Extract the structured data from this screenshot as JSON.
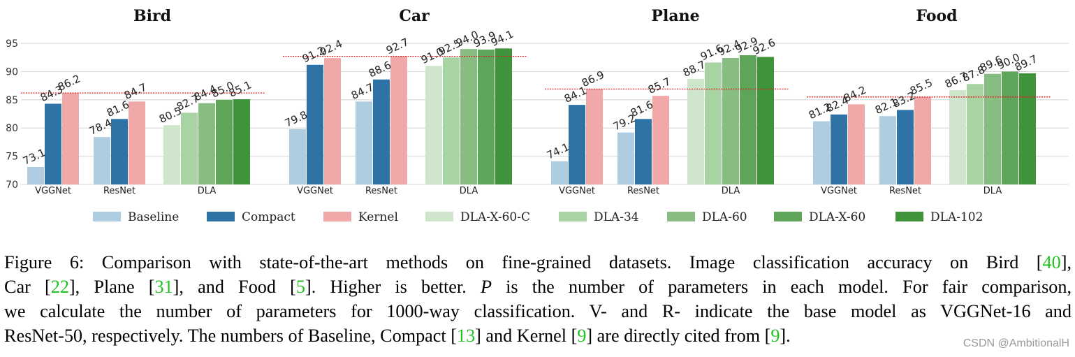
{
  "chart_data": {
    "type": "bar",
    "ylim": [
      70,
      96
    ],
    "yticks": [
      70,
      75,
      80,
      85,
      90,
      95
    ],
    "grid": true,
    "legend_position": "bottom",
    "legend": [
      {
        "name": "Baseline",
        "color": "#aecde0"
      },
      {
        "name": "Compact",
        "color": "#2f73a6"
      },
      {
        "name": "Kernel",
        "color": "#f0a8a8"
      },
      {
        "name": "DLA-X-60-C",
        "color": "#cfe6cc"
      },
      {
        "name": "DLA-34",
        "color": "#a8d3a2"
      },
      {
        "name": "DLA-60",
        "color": "#87bd80"
      },
      {
        "name": "DLA-X-60",
        "color": "#5ea55a"
      },
      {
        "name": "DLA-102",
        "color": "#3f943b"
      }
    ],
    "panels": [
      {
        "title": "Bird",
        "reference_line": 86.2,
        "groups": [
          {
            "label": "VGGNet",
            "bars": [
              {
                "series": "Baseline",
                "value": 73.1
              },
              {
                "series": "Compact",
                "value": 84.3
              },
              {
                "series": "Kernel",
                "value": 86.2
              }
            ]
          },
          {
            "label": "ResNet",
            "bars": [
              {
                "series": "Baseline",
                "value": 78.4
              },
              {
                "series": "Compact",
                "value": 81.6
              },
              {
                "series": "Kernel",
                "value": 84.7
              }
            ]
          },
          {
            "label": "DLA",
            "bars": [
              {
                "series": "DLA-X-60-C",
                "value": 80.5
              },
              {
                "series": "DLA-34",
                "value": 82.7
              },
              {
                "series": "DLA-60",
                "value": 84.4
              },
              {
                "series": "DLA-X-60",
                "value": 85.0
              },
              {
                "series": "DLA-102",
                "value": 85.1
              }
            ]
          }
        ]
      },
      {
        "title": "Car",
        "reference_line": 92.7,
        "groups": [
          {
            "label": "VGGNet",
            "bars": [
              {
                "series": "Baseline",
                "value": 79.8
              },
              {
                "series": "Compact",
                "value": 91.2
              },
              {
                "series": "Kernel",
                "value": 92.4
              }
            ]
          },
          {
            "label": "ResNet",
            "bars": [
              {
                "series": "Baseline",
                "value": 84.7
              },
              {
                "series": "Compact",
                "value": 88.6
              },
              {
                "series": "Kernel",
                "value": 92.7
              }
            ]
          },
          {
            "label": "DLA",
            "bars": [
              {
                "series": "DLA-X-60-C",
                "value": 91.0
              },
              {
                "series": "DLA-34",
                "value": 92.5
              },
              {
                "series": "DLA-60",
                "value": 94.0
              },
              {
                "series": "DLA-X-60",
                "value": 93.9
              },
              {
                "series": "DLA-102",
                "value": 94.1
              }
            ]
          }
        ]
      },
      {
        "title": "Plane",
        "reference_line": 86.9,
        "groups": [
          {
            "label": "VGGNet",
            "bars": [
              {
                "series": "Baseline",
                "value": 74.1
              },
              {
                "series": "Compact",
                "value": 84.1
              },
              {
                "series": "Kernel",
                "value": 86.9
              }
            ]
          },
          {
            "label": "ResNet",
            "bars": [
              {
                "series": "Baseline",
                "value": 79.2
              },
              {
                "series": "Compact",
                "value": 81.6
              },
              {
                "series": "Kernel",
                "value": 85.7
              }
            ]
          },
          {
            "label": "DLA",
            "bars": [
              {
                "series": "DLA-X-60-C",
                "value": 88.7
              },
              {
                "series": "DLA-34",
                "value": 91.6
              },
              {
                "series": "DLA-60",
                "value": 92.4
              },
              {
                "series": "DLA-X-60",
                "value": 92.9
              },
              {
                "series": "DLA-102",
                "value": 92.6
              }
            ]
          }
        ]
      },
      {
        "title": "Food",
        "reference_line": 85.5,
        "groups": [
          {
            "label": "VGGNet",
            "bars": [
              {
                "series": "Baseline",
                "value": 81.2
              },
              {
                "series": "Compact",
                "value": 82.4
              },
              {
                "series": "Kernel",
                "value": 84.2
              }
            ]
          },
          {
            "label": "ResNet",
            "bars": [
              {
                "series": "Baseline",
                "value": 82.1
              },
              {
                "series": "Compact",
                "value": 83.2
              },
              {
                "series": "Kernel",
                "value": 85.5
              }
            ]
          },
          {
            "label": "DLA",
            "bars": [
              {
                "series": "DLA-X-60-C",
                "value": 86.7
              },
              {
                "series": "DLA-34",
                "value": 87.8
              },
              {
                "series": "DLA-60",
                "value": 89.6
              },
              {
                "series": "DLA-X-60",
                "value": 90.0
              },
              {
                "series": "DLA-102",
                "value": 89.7
              }
            ]
          }
        ]
      }
    ]
  },
  "caption": {
    "lines": [
      [
        {
          "text": "Figure 6: Comparison with state-of-the-art methods on fine-grained datasets. Image classification accuracy on Bird ["
        },
        {
          "text": "40",
          "cite": true
        },
        {
          "text": "],"
        }
      ],
      [
        {
          "text": "Car ["
        },
        {
          "text": "22",
          "cite": true
        },
        {
          "text": "], Plane ["
        },
        {
          "text": "31",
          "cite": true
        },
        {
          "text": "], and Food ["
        },
        {
          "text": "5",
          "cite": true
        },
        {
          "text": "]. Higher is better. "
        },
        {
          "text": "P",
          "italic": true
        },
        {
          "text": " is the number of parameters in each model. For fair comparison,"
        }
      ],
      [
        {
          "text": "we calculate the number of parameters for 1000-way classification. V- and R- indicate the base model as VGGNet-16 and"
        }
      ],
      [
        {
          "text": "ResNet-50, respectively. The numbers of Baseline, Compact ["
        },
        {
          "text": "13",
          "cite": true
        },
        {
          "text": "] and Kernel ["
        },
        {
          "text": "9",
          "cite": true
        },
        {
          "text": "] are directly cited from ["
        },
        {
          "text": "9",
          "cite": true
        },
        {
          "text": "]."
        }
      ]
    ]
  },
  "watermark": "CSDN @AmbitionalH"
}
